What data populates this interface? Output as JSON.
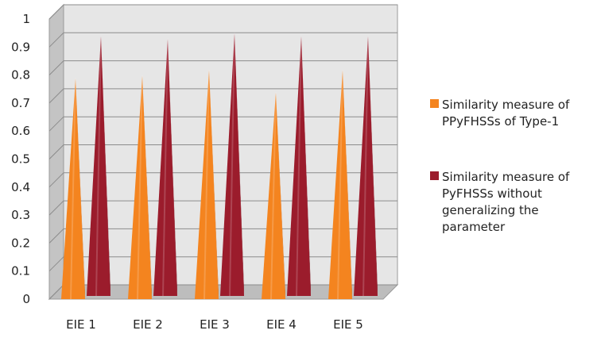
{
  "chart_data": {
    "type": "bar",
    "categories": [
      "EIE 1",
      "EIE 2",
      "EIE 3",
      "EIE 4",
      "EIE 5"
    ],
    "series": [
      {
        "name": "Similarity measure of PPyFHSSs of Type-1",
        "legend_lines": [
          "Similarity measure of",
          "PPyFHSSs of Type-1"
        ],
        "values": [
          0.8,
          0.81,
          0.83,
          0.75,
          0.83
        ],
        "color": "#f4841f",
        "shade": "#c9651a"
      },
      {
        "name": "Similarity measure of PyFHSSs without generalizing the parameter",
        "legend_lines": [
          "Similarity measure of",
          "PyFHSSs without",
          "generalizing the",
          "parameter"
        ],
        "values": [
          0.94,
          0.93,
          0.95,
          0.94,
          0.94
        ],
        "color": "#9b1c2c",
        "shade": "#6c1019"
      }
    ],
    "yticks": [
      "0",
      "0.1",
      "0.2",
      "0.3",
      "0.4",
      "0.5",
      "0.6",
      "0.7",
      "0.8",
      "0.9",
      "1"
    ],
    "ylim": [
      0,
      1
    ],
    "grid": true,
    "legend_position": "right",
    "title": "",
    "xlabel": "",
    "ylabel": ""
  }
}
